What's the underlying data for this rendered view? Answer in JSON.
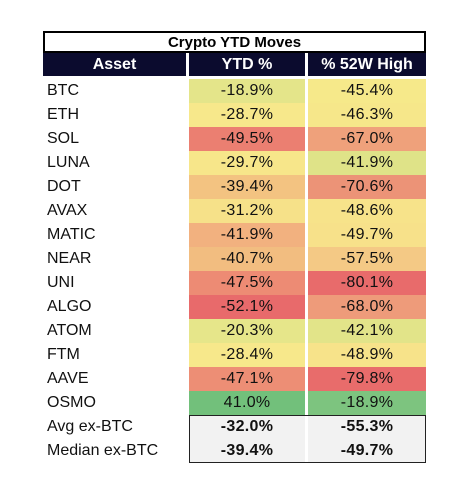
{
  "title": "Crypto YTD Moves",
  "headers": {
    "asset": "Asset",
    "ytd": "YTD %",
    "w52": "% 52W High"
  },
  "colors": {
    "header_bg": "#0b0b2e",
    "green": "#7dc47f",
    "yellow": "#f6e98a",
    "orange": "#f1b27f",
    "red": "#e8696a",
    "summary_bg": "#f2f2f2"
  },
  "rows": [
    {
      "asset": "BTC",
      "ytd": "-18.9%",
      "w52": "-45.4%",
      "ytd_color": "#e4e58a",
      "w52_color": "#f6e98a"
    },
    {
      "asset": "ETH",
      "ytd": "-28.7%",
      "w52": "-46.3%",
      "ytd_color": "#f7e88b",
      "w52_color": "#f6e78a"
    },
    {
      "asset": "SOL",
      "ytd": "-49.5%",
      "w52": "-67.0%",
      "ytd_color": "#eb7f71",
      "w52_color": "#efa17b"
    },
    {
      "asset": "LUNA",
      "ytd": "-29.7%",
      "w52": "-41.9%",
      "ytd_color": "#f7e68a",
      "w52_color": "#dfe388"
    },
    {
      "asset": "DOT",
      "ytd": "-39.4%",
      "w52": "-70.6%",
      "ytd_color": "#f3c381",
      "w52_color": "#ec9377"
    },
    {
      "asset": "AVAX",
      "ytd": "-31.2%",
      "w52": "-48.6%",
      "ytd_color": "#f6e189",
      "w52_color": "#f7e38a"
    },
    {
      "asset": "MATIC",
      "ytd": "-41.9%",
      "w52": "-49.7%",
      "ytd_color": "#f2b17f",
      "w52_color": "#f7e18a"
    },
    {
      "asset": "NEAR",
      "ytd": "-40.7%",
      "w52": "-57.5%",
      "ytd_color": "#f2bd80",
      "w52_color": "#f4c985"
    },
    {
      "asset": "UNI",
      "ytd": "-47.5%",
      "w52": "-80.1%",
      "ytd_color": "#ed8b74",
      "w52_color": "#e86b6b"
    },
    {
      "asset": "ALGO",
      "ytd": "-52.1%",
      "w52": "-68.0%",
      "ytd_color": "#e86a6b",
      "w52_color": "#ee9b7a"
    },
    {
      "asset": "ATOM",
      "ytd": "-20.3%",
      "w52": "-42.1%",
      "ytd_color": "#e6e68a",
      "w52_color": "#e2e489"
    },
    {
      "asset": "FTM",
      "ytd": "-28.4%",
      "w52": "-48.9%",
      "ytd_color": "#f7e88b",
      "w52_color": "#f7e38a"
    },
    {
      "asset": "AAVE",
      "ytd": "-47.1%",
      "w52": "-79.8%",
      "ytd_color": "#ed8e75",
      "w52_color": "#e86c6b"
    },
    {
      "asset": "OSMO",
      "ytd": "41.0%",
      "w52": "-18.9%",
      "ytd_color": "#72c07b",
      "w52_color": "#7dc47f"
    }
  ],
  "summary": [
    {
      "asset": "Avg ex-BTC",
      "ytd": "-32.0%",
      "w52": "-55.3%"
    },
    {
      "asset": "Median ex-BTC",
      "ytd": "-39.4%",
      "w52": "-49.7%"
    }
  ]
}
